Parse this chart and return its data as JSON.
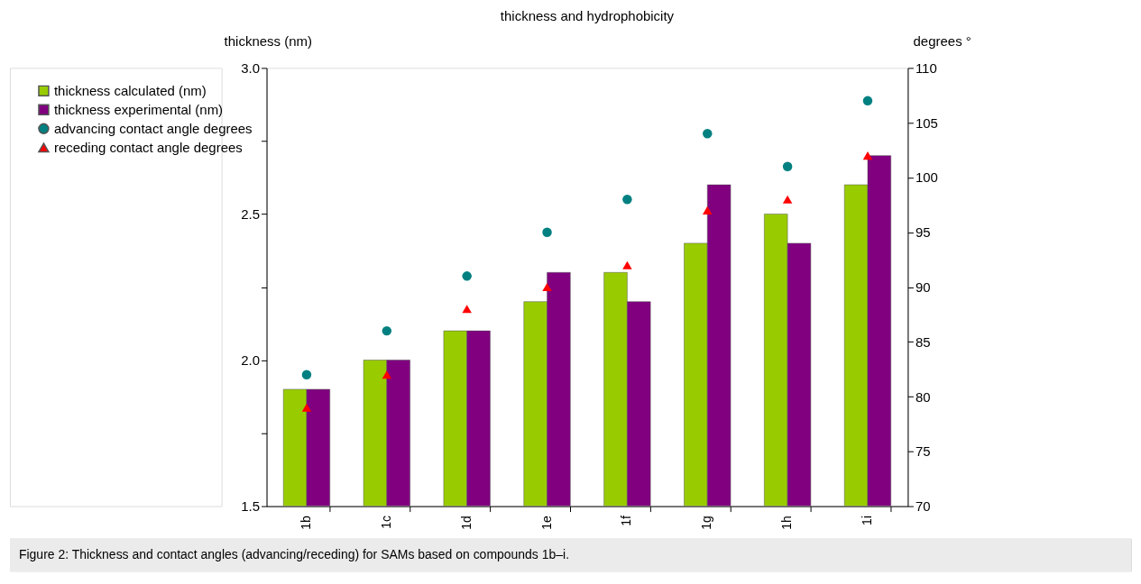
{
  "chart_data": {
    "type": "bar",
    "title": "thickness and hydrophobicity",
    "ylabel": "thickness (nm)",
    "y2label": "degrees °",
    "categories": [
      "1b",
      "1c",
      "1d",
      "1e",
      "1f",
      "1g",
      "1h",
      "1i"
    ],
    "series": [
      {
        "name": "thickness calculated (nm)",
        "color": "#99cc00",
        "values": [
          1.9,
          2.0,
          2.1,
          2.2,
          2.3,
          2.4,
          2.5,
          2.6
        ]
      },
      {
        "name": "thickness experimental (nm)",
        "color": "#800080",
        "values": [
          1.9,
          2.0,
          2.1,
          2.3,
          2.2,
          2.6,
          2.4,
          2.7
        ]
      },
      {
        "name": "advancing contact angle degrees",
        "type": "scatter",
        "marker": "circle",
        "axis": "y2",
        "color": "#008080",
        "values": [
          82,
          86,
          91,
          95,
          98,
          104,
          101,
          107
        ]
      },
      {
        "name": "receding contact angle degrees",
        "type": "scatter",
        "marker": "triangle",
        "axis": "y2",
        "color": "#ff0000",
        "values": [
          79,
          82,
          88,
          90,
          92,
          97,
          98,
          102
        ]
      }
    ],
    "ylim": [
      1.5,
      3.0
    ],
    "yticks": [
      1.5,
      {
        "value": 1.75,
        "label": null
      },
      {
        "value": 2,
        "label": "2.0"
      },
      {
        "value": 2.25,
        "label": null
      },
      2.5,
      {
        "value": 2.75,
        "label": null
      },
      {
        "value": 3,
        "label": "3.0"
      }
    ],
    "y2lim": [
      70,
      110
    ],
    "y2ticks": [
      70,
      75,
      80,
      85,
      90,
      95,
      100,
      105,
      110
    ],
    "grid": false,
    "legend": "top left",
    "annotations": [
      "Figure 2: Thickness and contact angles (advancing/receding) for SAMs based on compounds 1b–i."
    ]
  }
}
